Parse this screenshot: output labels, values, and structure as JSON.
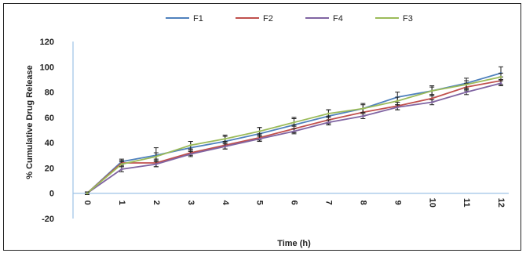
{
  "chart_data": {
    "type": "line",
    "title": "",
    "xlabel": "Time (h)",
    "ylabel": "% Cumulative Drug Release",
    "x": [
      0,
      1,
      2,
      3,
      4,
      5,
      6,
      7,
      8,
      9,
      10,
      11,
      12
    ],
    "xticks": [
      "0",
      "1",
      "2",
      "3",
      "4",
      "5",
      "6",
      "7",
      "8",
      "9",
      "10",
      "11",
      "12"
    ],
    "xlim": [
      0,
      12
    ],
    "ylim": [
      -20,
      120
    ],
    "yticks": [
      "-20",
      "0",
      "20",
      "40",
      "60",
      "80",
      "100",
      "120"
    ],
    "grid": false,
    "legend_position": "top",
    "series": [
      {
        "name": "F1",
        "color": "#4F81BD",
        "values": [
          0,
          25,
          30,
          36,
          41,
          47,
          54,
          61,
          67,
          76,
          81,
          87,
          95
        ],
        "errors": [
          1,
          2,
          6,
          5,
          4,
          5,
          6,
          5,
          4,
          4,
          4,
          4,
          5
        ]
      },
      {
        "name": "F2",
        "color": "#C0504D",
        "values": [
          0,
          24,
          24,
          32,
          38,
          44,
          51,
          58,
          64,
          69,
          75,
          84,
          89
        ],
        "errors": [
          1,
          2,
          3,
          2,
          3,
          3,
          3,
          3,
          3,
          3,
          3,
          3,
          3
        ]
      },
      {
        "name": "F4",
        "color": "#8064A2",
        "values": [
          0,
          19,
          23,
          31,
          37,
          43,
          49,
          56,
          61,
          68,
          72,
          80,
          87
        ],
        "errors": [
          1,
          2,
          2,
          2,
          2,
          2,
          2,
          2,
          2,
          2,
          2,
          2,
          2
        ]
      },
      {
        "name": "F3",
        "color": "#9BBB59",
        "values": [
          0,
          23,
          29,
          38,
          43,
          49,
          56,
          63,
          67,
          73,
          81,
          86,
          92
        ],
        "errors": [
          1,
          2,
          3,
          3,
          3,
          3,
          3,
          3,
          3,
          3,
          3,
          3,
          3
        ]
      }
    ]
  }
}
